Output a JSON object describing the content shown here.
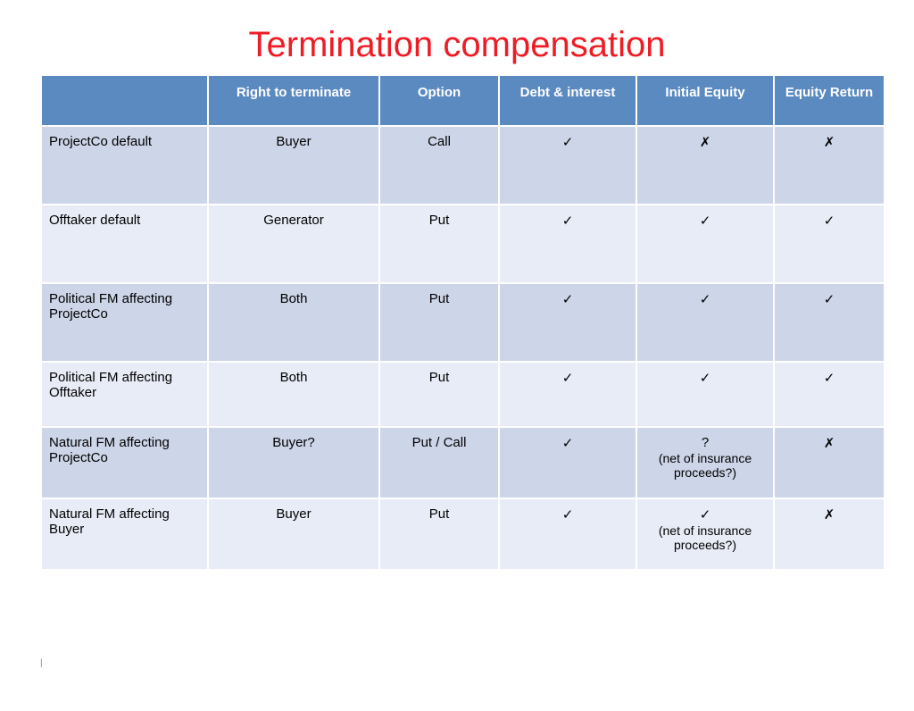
{
  "title": "Termination compensation",
  "title_color": "#ee1c25",
  "header_bg": "#5b8ac0",
  "row_bg_a": "#cdd5e8",
  "row_bg_b": "#e8ecf6",
  "columns": [
    "",
    "Right to terminate",
    "Option",
    "Debt & interest",
    "Initial Equity",
    "Equity Return"
  ],
  "check": "✓",
  "cross": "✗",
  "rows": [
    {
      "height": 70,
      "cells": [
        {
          "text": "ProjectCo default"
        },
        {
          "text": "Buyer"
        },
        {
          "text": "Call"
        },
        {
          "mark": "check"
        },
        {
          "mark": "cross"
        },
        {
          "mark": "cross"
        }
      ]
    },
    {
      "height": 70,
      "cells": [
        {
          "text": "Offtaker default"
        },
        {
          "text": "Generator"
        },
        {
          "text": "Put"
        },
        {
          "mark": "check"
        },
        {
          "mark": "check"
        },
        {
          "mark": "check"
        }
      ]
    },
    {
      "height": 70,
      "cells": [
        {
          "text": "Political FM affecting ProjectCo"
        },
        {
          "text": "Both"
        },
        {
          "text": "Put"
        },
        {
          "mark": "check"
        },
        {
          "mark": "check"
        },
        {
          "mark": "check"
        }
      ]
    },
    {
      "height": 55,
      "cells": [
        {
          "text": "Political FM affecting Offtaker"
        },
        {
          "text": "Both"
        },
        {
          "text": "Put"
        },
        {
          "mark": "check"
        },
        {
          "mark": "check"
        },
        {
          "mark": "check"
        }
      ]
    },
    {
      "height": 62,
      "cells": [
        {
          "text": "Natural FM affecting ProjectCo"
        },
        {
          "text": "Buyer?"
        },
        {
          "text": "Put / Call"
        },
        {
          "mark": "check"
        },
        {
          "text": "?",
          "sub": "(net of insurance proceeds?)"
        },
        {
          "mark": "cross"
        }
      ]
    },
    {
      "height": 62,
      "cells": [
        {
          "text": "Natural FM affecting Buyer"
        },
        {
          "text": "Buyer"
        },
        {
          "text": "Put"
        },
        {
          "mark": "check"
        },
        {
          "mark": "check",
          "sub": "(net of insurance proceeds?)"
        },
        {
          "mark": "cross"
        }
      ]
    }
  ],
  "footer": "|"
}
